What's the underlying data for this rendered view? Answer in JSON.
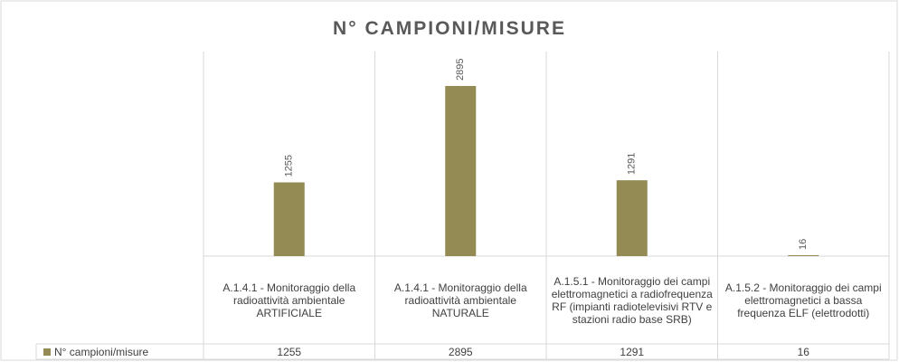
{
  "chart_data": {
    "type": "bar",
    "title": "N° CAMPIONI/MISURE",
    "categories": [
      "A.1.4.1 - Monitoraggio della radioattività ambientale ARTIFICIALE",
      "A.1.4.1 - Monitoraggio della radioattività ambientale NATURALE",
      "A.1.5.1 - Monitoraggio dei campi elettromagnetici a radiofrequenza RF (impianti radiotelevisivi RTV e stazioni radio base SRB)",
      "A.1.5.2 - Monitoraggio dei campi elettromagnetici  a bassa frequenza ELF (elettrodotti)"
    ],
    "series": [
      {
        "name": "N° campioni/misure",
        "color": "#948a54",
        "values": [
          1255,
          2895,
          1291,
          16
        ]
      }
    ],
    "ylim": [
      0,
      3480
    ]
  }
}
